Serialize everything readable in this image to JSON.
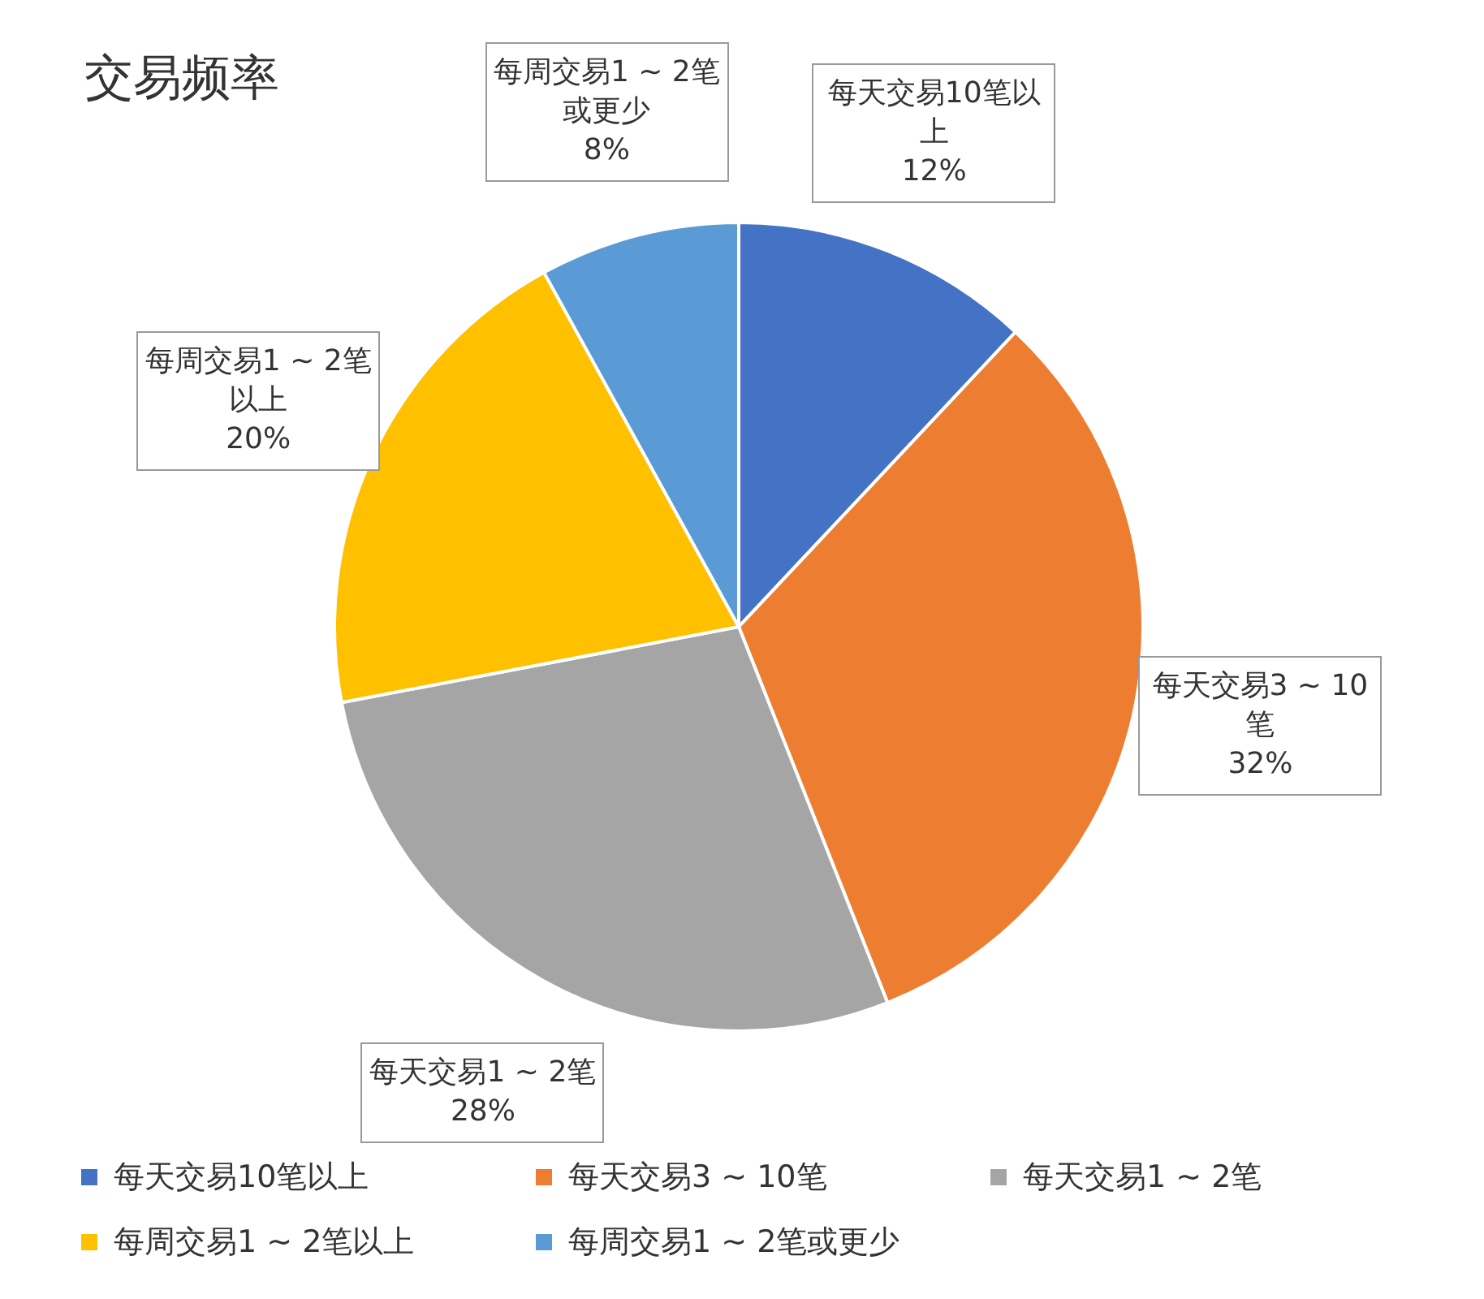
{
  "chart_data": {
    "type": "pie",
    "title": "交易频率",
    "categories": [
      "每天交易10笔以上",
      "每天交易3 ~ 10笔",
      "每天交易1 ~ 2笔",
      "每周交易1 ~ 2笔以上",
      "每周交易1 ~ 2笔或更少"
    ],
    "values": [
      12,
      32,
      28,
      20,
      8
    ],
    "colors": [
      "#4472c4",
      "#ed7d31",
      "#a5a5a5",
      "#ffc000",
      "#5b9bd5"
    ],
    "value_labels": [
      "12%",
      "32%",
      "28%",
      "20%",
      "8%"
    ],
    "legend": "bottom"
  }
}
